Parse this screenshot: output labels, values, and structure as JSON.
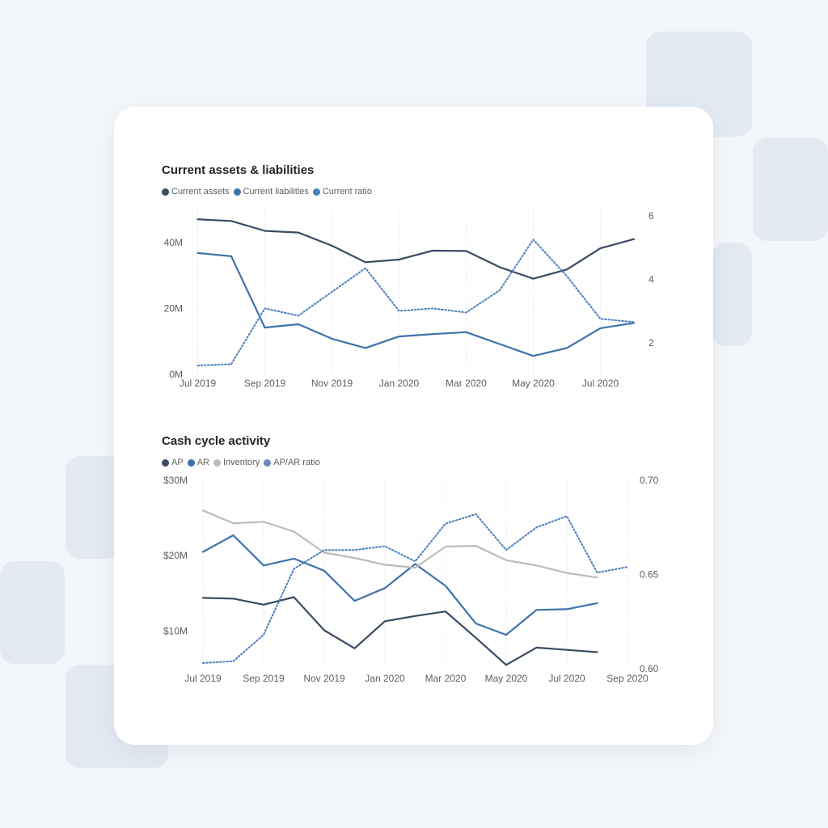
{
  "chart_data": [
    {
      "type": "line",
      "title": "Current assets & liabilities",
      "legend_position": "top-left",
      "x": [
        "2019-07",
        "2019-08",
        "2019-09",
        "2019-10",
        "2019-11",
        "2019-12",
        "2020-01",
        "2020-02",
        "2020-03",
        "2020-04",
        "2020-05",
        "2020-06",
        "2020-07",
        "2020-08"
      ],
      "x_tick_labels": [
        "Jul 2019",
        "Sep 2019",
        "Nov 2019",
        "Jan 2020",
        "Mar 2020",
        "May 2020",
        "Jul 2020"
      ],
      "y_ticks_left": [
        "0M",
        "20M",
        "40M"
      ],
      "y_ticks_right": [
        "2",
        "4",
        "6"
      ],
      "ylim_left": [
        0,
        50
      ],
      "ylim_right": [
        1,
        6.2
      ],
      "grid": "vertical-dotted",
      "series": [
        {
          "name": "Current assets",
          "axis": "left",
          "style": "solid",
          "color": "#3c4a63",
          "values": [
            47,
            46.5,
            43.5,
            43,
            39,
            34,
            34.8,
            37.5,
            37.4,
            32.5,
            29,
            31.8,
            38.2,
            41
          ]
        },
        {
          "name": "Current liabilities",
          "axis": "left",
          "style": "solid",
          "color": "#3f72ac",
          "values": [
            36.8,
            35.8,
            14.2,
            15.2,
            10.8,
            8,
            11.5,
            12.2,
            12.8,
            9.2,
            5.6,
            8,
            14,
            15.6
          ]
        },
        {
          "name": "Current ratio",
          "axis": "right",
          "style": "dotted",
          "color": "#4a7fbf",
          "values": [
            1.28,
            1.32,
            3.08,
            2.85,
            3.6,
            4.35,
            3.0,
            3.08,
            2.95,
            3.65,
            5.25,
            4.1,
            2.75,
            2.65
          ]
        }
      ]
    },
    {
      "type": "line",
      "title": "Cash cycle activity",
      "legend_position": "top-left",
      "x": [
        "2019-07",
        "2019-08",
        "2019-09",
        "2019-10",
        "2019-11",
        "2019-12",
        "2020-01",
        "2020-02",
        "2020-03",
        "2020-04",
        "2020-05",
        "2020-06",
        "2020-07",
        "2020-08",
        "2020-09"
      ],
      "x_tick_labels": [
        "Jul 2019",
        "Sep 2019",
        "Nov 2019",
        "Jan 2020",
        "Mar 2020",
        "May 2020",
        "Jul 2020",
        "Sep 2020"
      ],
      "y_ticks_left": [
        "$10M",
        "$20M",
        "$30M"
      ],
      "y_ticks_right": [
        "0.60",
        "0.65",
        "0.70"
      ],
      "ylim_left": [
        5,
        30
      ],
      "ylim_right": [
        0.6,
        0.7
      ],
      "grid": "vertical-dotted",
      "series": [
        {
          "name": "AP",
          "axis": "left",
          "style": "solid",
          "color": "#3c4a63",
          "values": [
            14.4,
            14.3,
            13.5,
            14.5,
            10.1,
            7.7,
            11.3,
            12,
            12.6,
            9.1,
            5.5,
            7.8,
            7.5,
            7.2,
            null
          ]
        },
        {
          "name": "AR",
          "axis": "left",
          "style": "solid",
          "color": "#3f72ac",
          "values": [
            20.5,
            22.7,
            18.7,
            19.6,
            18,
            14,
            15.7,
            18.9,
            16,
            11,
            9.5,
            12.8,
            12.9,
            13.7,
            null
          ]
        },
        {
          "name": "Inventory",
          "axis": "left",
          "style": "solid",
          "color": "#bcbcbc",
          "values": [
            26,
            24.3,
            24.5,
            23.2,
            20.4,
            19.7,
            18.8,
            18.4,
            21.2,
            21.3,
            19.4,
            18.7,
            17.7,
            17.1,
            null
          ]
        },
        {
          "name": "AP/AR ratio",
          "axis": "right",
          "style": "dotted",
          "color": "#4a7fbf",
          "values": [
            0.603,
            0.604,
            0.618,
            0.653,
            0.663,
            0.663,
            0.665,
            0.657,
            0.677,
            0.682,
            0.663,
            0.675,
            0.681,
            0.651,
            0.654
          ]
        }
      ]
    }
  ]
}
